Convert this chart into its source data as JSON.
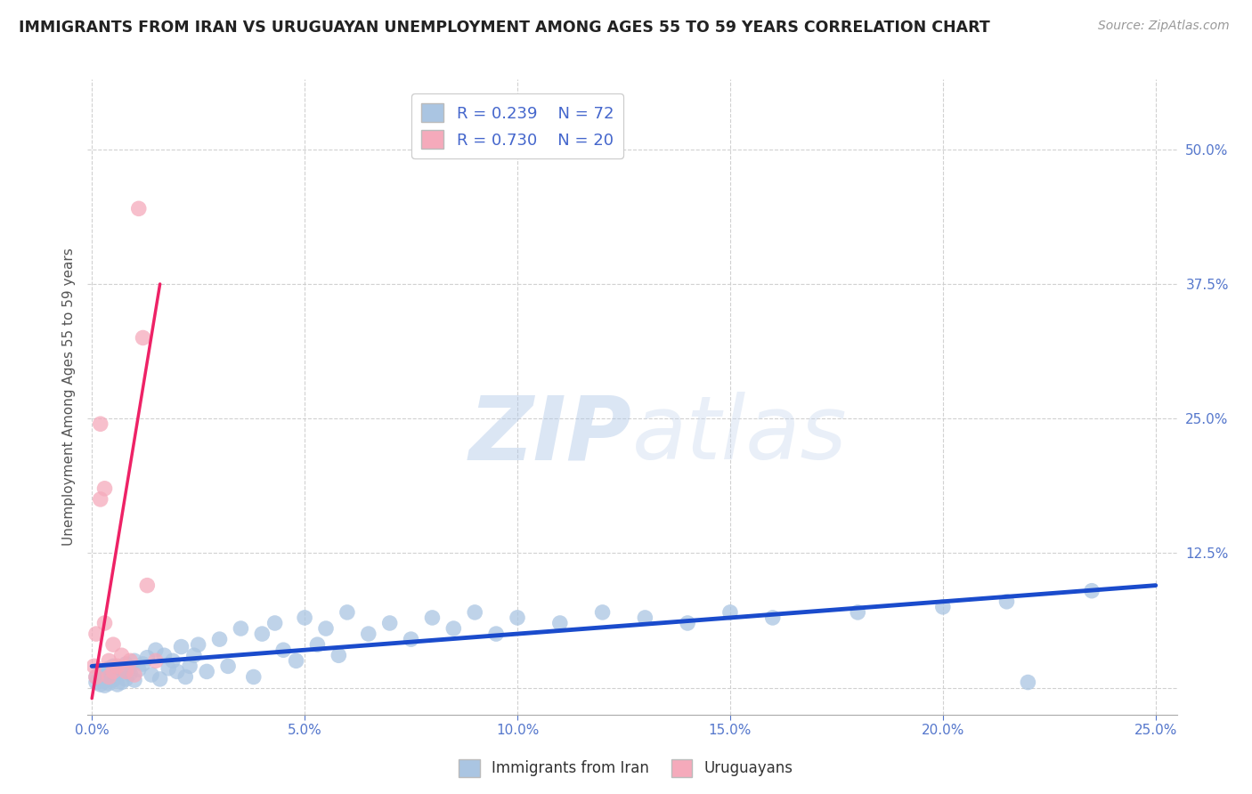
{
  "title": "IMMIGRANTS FROM IRAN VS URUGUAYAN UNEMPLOYMENT AMONG AGES 55 TO 59 YEARS CORRELATION CHART",
  "source": "Source: ZipAtlas.com",
  "ylabel": "Unemployment Among Ages 55 to 59 years",
  "xlim": [
    -0.001,
    0.255
  ],
  "ylim": [
    -0.025,
    0.565
  ],
  "xticks": [
    0.0,
    0.05,
    0.1,
    0.15,
    0.2,
    0.25
  ],
  "xticklabels": [
    "0.0%",
    "5.0%",
    "10.0%",
    "15.0%",
    "20.0%",
    "25.0%"
  ],
  "yticks": [
    0.0,
    0.125,
    0.25,
    0.375,
    0.5
  ],
  "yticklabels": [
    "",
    "12.5%",
    "25.0%",
    "37.5%",
    "50.0%"
  ],
  "blue_R": 0.239,
  "blue_N": 72,
  "pink_R": 0.73,
  "pink_N": 20,
  "blue_color": "#aac5e2",
  "pink_color": "#f5aabb",
  "blue_line_color": "#1a4bcc",
  "pink_line_color": "#ee2266",
  "watermark_zip": "ZIP",
  "watermark_atlas": "atlas",
  "blue_scatter_x": [
    0.001,
    0.001,
    0.002,
    0.002,
    0.002,
    0.003,
    0.003,
    0.003,
    0.004,
    0.004,
    0.004,
    0.005,
    0.005,
    0.005,
    0.006,
    0.006,
    0.007,
    0.007,
    0.008,
    0.008,
    0.009,
    0.009,
    0.01,
    0.01,
    0.011,
    0.012,
    0.013,
    0.014,
    0.015,
    0.016,
    0.017,
    0.018,
    0.019,
    0.02,
    0.021,
    0.022,
    0.023,
    0.024,
    0.025,
    0.027,
    0.03,
    0.032,
    0.035,
    0.038,
    0.04,
    0.043,
    0.045,
    0.048,
    0.05,
    0.053,
    0.055,
    0.058,
    0.06,
    0.065,
    0.07,
    0.075,
    0.08,
    0.085,
    0.09,
    0.095,
    0.1,
    0.11,
    0.12,
    0.13,
    0.14,
    0.15,
    0.16,
    0.18,
    0.2,
    0.215,
    0.22,
    0.235
  ],
  "blue_scatter_y": [
    0.01,
    0.005,
    0.015,
    0.008,
    0.003,
    0.012,
    0.006,
    0.002,
    0.018,
    0.009,
    0.004,
    0.02,
    0.011,
    0.007,
    0.014,
    0.003,
    0.016,
    0.005,
    0.022,
    0.008,
    0.019,
    0.013,
    0.025,
    0.007,
    0.017,
    0.022,
    0.028,
    0.012,
    0.035,
    0.008,
    0.03,
    0.018,
    0.025,
    0.015,
    0.038,
    0.01,
    0.02,
    0.03,
    0.04,
    0.015,
    0.045,
    0.02,
    0.055,
    0.01,
    0.05,
    0.06,
    0.035,
    0.025,
    0.065,
    0.04,
    0.055,
    0.03,
    0.07,
    0.05,
    0.06,
    0.045,
    0.065,
    0.055,
    0.07,
    0.05,
    0.065,
    0.06,
    0.07,
    0.065,
    0.06,
    0.07,
    0.065,
    0.07,
    0.075,
    0.08,
    0.005,
    0.09
  ],
  "pink_scatter_x": [
    0.0005,
    0.001,
    0.001,
    0.002,
    0.002,
    0.003,
    0.003,
    0.004,
    0.004,
    0.005,
    0.005,
    0.006,
    0.007,
    0.008,
    0.009,
    0.01,
    0.011,
    0.012,
    0.013,
    0.015
  ],
  "pink_scatter_y": [
    0.02,
    0.05,
    0.01,
    0.245,
    0.175,
    0.185,
    0.06,
    0.01,
    0.025,
    0.015,
    0.04,
    0.02,
    0.03,
    0.015,
    0.025,
    0.012,
    0.445,
    0.325,
    0.095,
    0.025
  ],
  "blue_trend_x": [
    0.0,
    0.25
  ],
  "blue_trend_y": [
    0.02,
    0.095
  ],
  "pink_trend_x": [
    0.0,
    0.016
  ],
  "pink_trend_y": [
    -0.01,
    0.375
  ]
}
